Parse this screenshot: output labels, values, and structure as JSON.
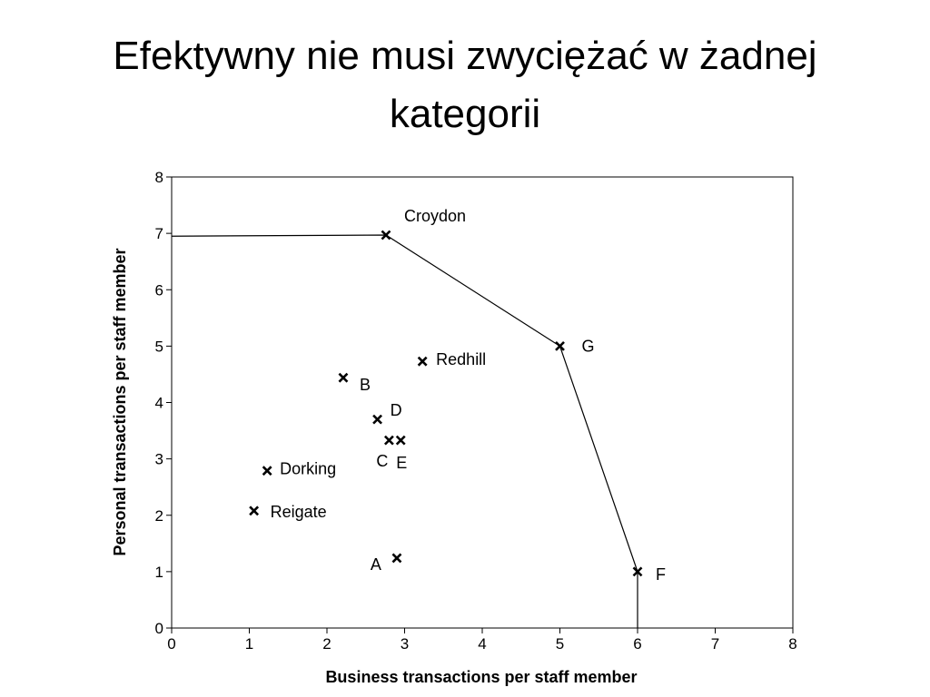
{
  "chart_data": {
    "type": "scatter",
    "title": "Efektywny nie musi zwyciężać w żadnej kategorii",
    "xlabel": "Business transactions per staff member",
    "ylabel": "Personal transactions per staff member",
    "xlim": [
      0,
      8
    ],
    "ylim": [
      0,
      8
    ],
    "xticks": [
      0,
      1,
      2,
      3,
      4,
      5,
      6,
      7,
      8
    ],
    "yticks": [
      0,
      1,
      2,
      3,
      4,
      5,
      6,
      7,
      8
    ],
    "series": [
      {
        "type": "scatter",
        "marker": "x",
        "color": "#000000",
        "labels": [
          "Croydon",
          "G",
          "F",
          "Redhill",
          "B",
          "D",
          "C",
          "E",
          "Dorking",
          "Reigate",
          "A"
        ],
        "x": [
          2.76,
          5,
          6,
          3.23,
          2.21,
          2.65,
          2.8,
          2.95,
          1.23,
          1.06,
          2.9
        ],
        "values": [
          6.97,
          5,
          1,
          4.73,
          4.44,
          3.7,
          3.33,
          3.33,
          2.79,
          2.08,
          1.24
        ]
      },
      {
        "type": "line",
        "color": "#000000",
        "x": [
          0,
          2.76,
          5,
          6,
          6
        ],
        "values": [
          6.95,
          6.97,
          5,
          1,
          0
        ]
      }
    ]
  }
}
